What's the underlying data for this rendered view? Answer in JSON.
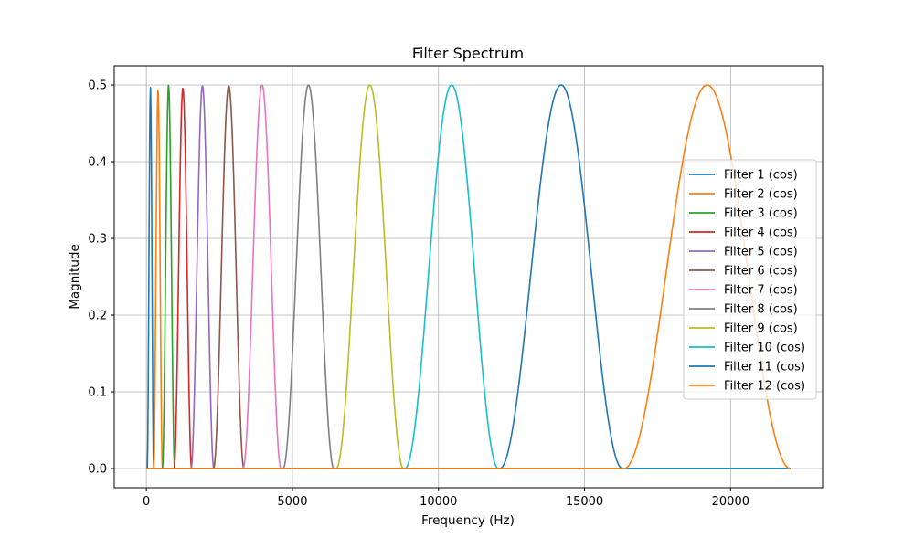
{
  "chart_data": {
    "type": "line",
    "title": "Filter Spectrum",
    "xlabel": "Frequency (Hz)",
    "ylabel": "Magnitude",
    "xlim": [
      -1100,
      23150
    ],
    "ylim": [
      -0.025,
      0.525
    ],
    "x_ticks": [
      0,
      5000,
      10000,
      15000,
      20000
    ],
    "x_tick_labels": [
      "0",
      "5000",
      "10000",
      "15000",
      "20000"
    ],
    "y_ticks": [
      0.0,
      0.1,
      0.2,
      0.3,
      0.4,
      0.5
    ],
    "y_tick_labels": [
      "0.0",
      "0.1",
      "0.2",
      "0.3",
      "0.4",
      "0.5"
    ],
    "x_range": [
      0,
      22050
    ],
    "grid": true,
    "legend_position": "center-right",
    "series": [
      {
        "name": "Filter 1 (cos)",
        "color": "#1f77b4",
        "center": 140,
        "half_width": 110,
        "peak": 0.497
      },
      {
        "name": "Filter 2 (cos)",
        "color": "#ff7f0e",
        "center": 400,
        "half_width": 150,
        "peak": 0.495
      },
      {
        "name": "Filter 3 (cos)",
        "color": "#2ca02c",
        "center": 760,
        "half_width": 210,
        "peak": 0.5
      },
      {
        "name": "Filter 4 (cos)",
        "color": "#d62728",
        "center": 1250,
        "half_width": 300,
        "peak": 0.496
      },
      {
        "name": "Filter 5 (cos)",
        "color": "#9467bd",
        "center": 1920,
        "half_width": 390,
        "peak": 0.499
      },
      {
        "name": "Filter 6 (cos)",
        "color": "#8c564b",
        "center": 2820,
        "half_width": 520,
        "peak": 0.499
      },
      {
        "name": "Filter 7 (cos)",
        "color": "#e377c2",
        "center": 3960,
        "half_width": 650,
        "peak": 0.5
      },
      {
        "name": "Filter 8 (cos)",
        "color": "#7f7f7f",
        "center": 5550,
        "half_width": 870,
        "peak": 0.5
      },
      {
        "name": "Filter 9 (cos)",
        "color": "#bcbd22",
        "center": 7650,
        "half_width": 1150,
        "peak": 0.5
      },
      {
        "name": "Filter 10 (cos)",
        "color": "#17becf",
        "center": 10450,
        "half_width": 1600,
        "peak": 0.5
      },
      {
        "name": "Filter 11 (cos)",
        "color": "#1f77b4",
        "center": 14200,
        "half_width": 2100,
        "peak": 0.5
      },
      {
        "name": "Filter 12 (cos)",
        "color": "#ff7f0e",
        "center": 19200,
        "half_width": 2850,
        "peak": 0.5
      }
    ]
  }
}
